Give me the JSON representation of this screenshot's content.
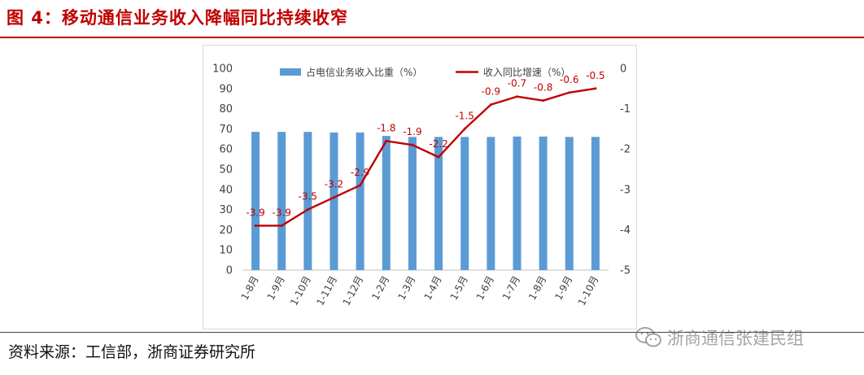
{
  "figure": {
    "title": "图 4：移动通信业务收入降幅同比持续收窄",
    "source": "资料来源：工信部，浙商证券研究所",
    "watermark": "浙商通信张建民组",
    "watermark_icon": "wechat-icon"
  },
  "chart_data": {
    "type": "bar+line",
    "categories": [
      "1-8月",
      "1-9月",
      "1-10月",
      "1-11月",
      "1-12月",
      "1-2月",
      "1-3月",
      "1-4月",
      "1-5月",
      "1-6月",
      "1-7月",
      "1-8月",
      "1-9月",
      "1-10月"
    ],
    "series": [
      {
        "name": "占电信业务收入比重（%）",
        "type": "bar",
        "axis": "left",
        "color": "#5b9bd5",
        "values": [
          68.5,
          68.5,
          68.5,
          68.2,
          68.2,
          66.5,
          66.0,
          66.0,
          66.0,
          66.0,
          66.2,
          66.2,
          66.0,
          66.0
        ]
      },
      {
        "name": "收入同比增速（%）",
        "type": "line",
        "axis": "right",
        "color": "#c00000",
        "values": [
          -3.9,
          -3.9,
          -3.5,
          -3.2,
          -2.9,
          -1.8,
          -1.9,
          -2.2,
          -1.5,
          -0.9,
          -0.7,
          -0.8,
          -0.6,
          -0.5
        ],
        "labels": [
          "-3.9",
          "-3.9",
          "-3.5",
          "-3.2",
          "-2.9",
          "-1.8",
          "-1.9",
          "-2.2",
          "-1.5",
          "-0.9",
          "-0.7",
          "-0.8",
          "-0.6",
          "-0.5"
        ]
      }
    ],
    "y_left": {
      "min": 0,
      "max": 100,
      "step": 10,
      "ticks": [
        "0",
        "10",
        "20",
        "30",
        "40",
        "50",
        "60",
        "70",
        "80",
        "90",
        "100"
      ]
    },
    "y_right": {
      "min": -5,
      "max": 0,
      "step": 1,
      "ticks": [
        "-5",
        "-4",
        "-3",
        "-2",
        "-1",
        "0"
      ]
    },
    "legend": {
      "position": "top"
    }
  }
}
